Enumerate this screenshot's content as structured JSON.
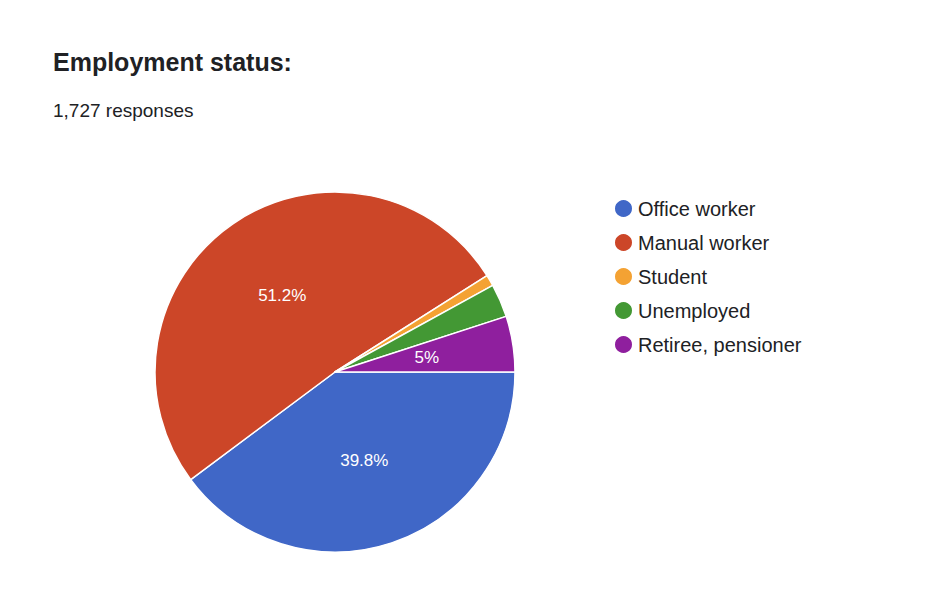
{
  "chart_data": {
    "type": "pie",
    "title": "Employment status:",
    "subtitle": "1,727 responses",
    "categories": [
      "Office worker",
      "Manual worker",
      "Student",
      "Unemployed",
      "Retiree, pensioner"
    ],
    "values": [
      39.8,
      51.2,
      1.0,
      3.0,
      5
    ],
    "value_labels": [
      "39.8%",
      "51.2%",
      null,
      null,
      "5%"
    ],
    "colors": [
      "#4067c7",
      "#cc4628",
      "#f4a233",
      "#439834",
      "#8f1f9e"
    ],
    "data_labels": true,
    "legend": "right"
  }
}
